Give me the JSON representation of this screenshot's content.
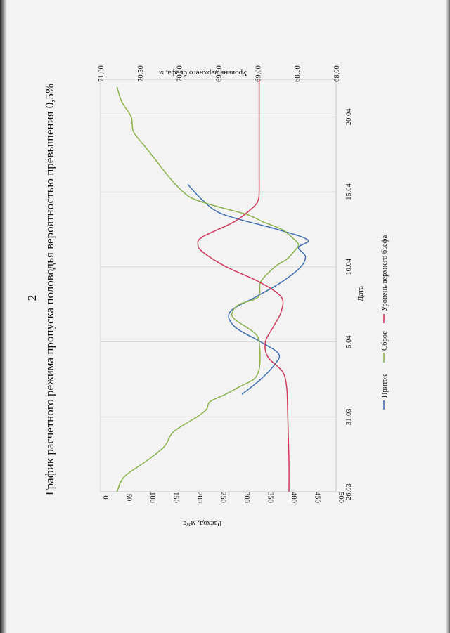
{
  "page_number": "2",
  "chart_data": {
    "type": "line",
    "title": "График расчетного режима пропуска половодья вероятностью превышения 0,5%",
    "xlabel": "Дата",
    "ylabel": "Расход, м³/с",
    "y2label": "Уровень верхнего бьефа, м",
    "x_tick_labels": [
      "26.03",
      "31.03",
      "5.04",
      "10.04",
      "15.04",
      "20.04"
    ],
    "x_tick_positions": [
      0,
      5,
      10,
      15,
      20,
      25
    ],
    "xlim": [
      0,
      27.5
    ],
    "ylim": [
      0,
      500
    ],
    "y_ticks": [
      "0",
      "50",
      "100",
      "150",
      "200",
      "250",
      "300",
      "350",
      "400",
      "450",
      "500"
    ],
    "y2lim": [
      68.0,
      71.0
    ],
    "y2_ticks": [
      "68,00",
      "68,50",
      "69,00",
      "69,50",
      "70,00",
      "70,50",
      "71,00"
    ],
    "grid": "vertical",
    "legend_position": "bottom",
    "colors": {
      "inflow": "#3f6fb4",
      "discharge": "#8ab24a",
      "level": "#cf3b5b"
    },
    "series": [
      {
        "name": "Приток",
        "axis": "left",
        "x": [
          6.5,
          7.5,
          8.5,
          9.2,
          10,
          11,
          12,
          13,
          14,
          15,
          15.7,
          16.3,
          16.8,
          17.5,
          18.5,
          19.5,
          20.5
        ],
        "values": [
          300,
          340,
          370,
          378,
          340,
          285,
          275,
          330,
          385,
          425,
          435,
          420,
          440,
          375,
          260,
          215,
          185
        ]
      },
      {
        "name": "Сброс",
        "axis": "left",
        "x": [
          0,
          1,
          2,
          3,
          4,
          5,
          5.5,
          6,
          6.5,
          7,
          7.5,
          8,
          8.5,
          9.5,
          10.5,
          11.5,
          12,
          12.5,
          13,
          14,
          15,
          15.5,
          16,
          16.5,
          17,
          17.5,
          18,
          18.5,
          19,
          19.5,
          20,
          21,
          22,
          23,
          24,
          25,
          26,
          27
        ],
        "values": [
          35,
          50,
          95,
          135,
          155,
          205,
          225,
          232,
          265,
          295,
          325,
          335,
          338,
          338,
          330,
          285,
          280,
          295,
          335,
          340,
          370,
          395,
          410,
          420,
          405,
          385,
          345,
          310,
          250,
          200,
          175,
          145,
          120,
          95,
          70,
          65,
          45,
          35
        ]
      },
      {
        "name": "Уровень верхнего бьефа",
        "axis": "right",
        "x": [
          0,
          2,
          4,
          6,
          7,
          8,
          9,
          10,
          11,
          12,
          13,
          14,
          15,
          16,
          16.5,
          17,
          18,
          19,
          19.5,
          20,
          21,
          22,
          25,
          27.5
        ],
        "values": [
          68.6,
          68.6,
          68.61,
          68.62,
          68.63,
          68.68,
          68.87,
          68.9,
          68.8,
          68.7,
          68.7,
          68.98,
          69.4,
          69.7,
          69.76,
          69.7,
          69.3,
          69.05,
          68.99,
          68.98,
          68.98,
          68.98,
          68.98,
          68.98
        ]
      }
    ]
  }
}
